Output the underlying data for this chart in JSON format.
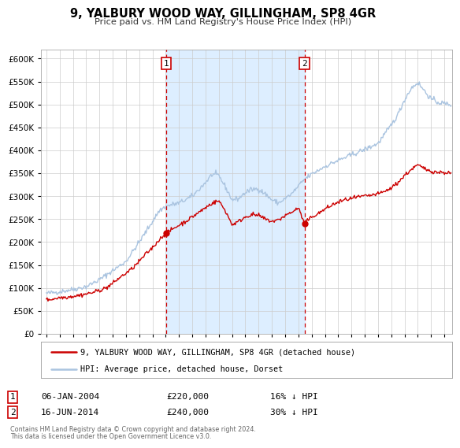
{
  "title": "9, YALBURY WOOD WAY, GILLINGHAM, SP8 4GR",
  "subtitle": "Price paid vs. HM Land Registry's House Price Index (HPI)",
  "legend_line1": "9, YALBURY WOOD WAY, GILLINGHAM, SP8 4GR (detached house)",
  "legend_line2": "HPI: Average price, detached house, Dorset",
  "marker1_date": "06-JAN-2004",
  "marker1_price": 220000,
  "marker1_price_str": "£220,000",
  "marker1_pct": "16% ↓ HPI",
  "marker2_date": "16-JUN-2014",
  "marker2_price": 240000,
  "marker2_price_str": "£240,000",
  "marker2_pct": "30% ↓ HPI",
  "marker1_x": 2004.04,
  "marker1_y": 220000,
  "marker2_x": 2014.46,
  "marker2_y": 240000,
  "footer1": "Contains HM Land Registry data © Crown copyright and database right 2024.",
  "footer2": "This data is licensed under the Open Government Licence v3.0.",
  "hpi_color": "#aac4e0",
  "price_color": "#cc0000",
  "marker_color": "#cc0000",
  "span_color": "#ddeeff",
  "ylim": [
    0,
    620000
  ],
  "xlim_start": 1994.6,
  "xlim_end": 2025.6,
  "yticks": [
    0,
    50000,
    100000,
    150000,
    200000,
    250000,
    300000,
    350000,
    400000,
    450000,
    500000,
    550000,
    600000
  ],
  "xticks": [
    1995,
    1996,
    1997,
    1998,
    1999,
    2000,
    2001,
    2002,
    2003,
    2004,
    2005,
    2006,
    2007,
    2008,
    2009,
    2010,
    2011,
    2012,
    2013,
    2014,
    2015,
    2016,
    2017,
    2018,
    2019,
    2020,
    2021,
    2022,
    2023,
    2024,
    2025
  ]
}
